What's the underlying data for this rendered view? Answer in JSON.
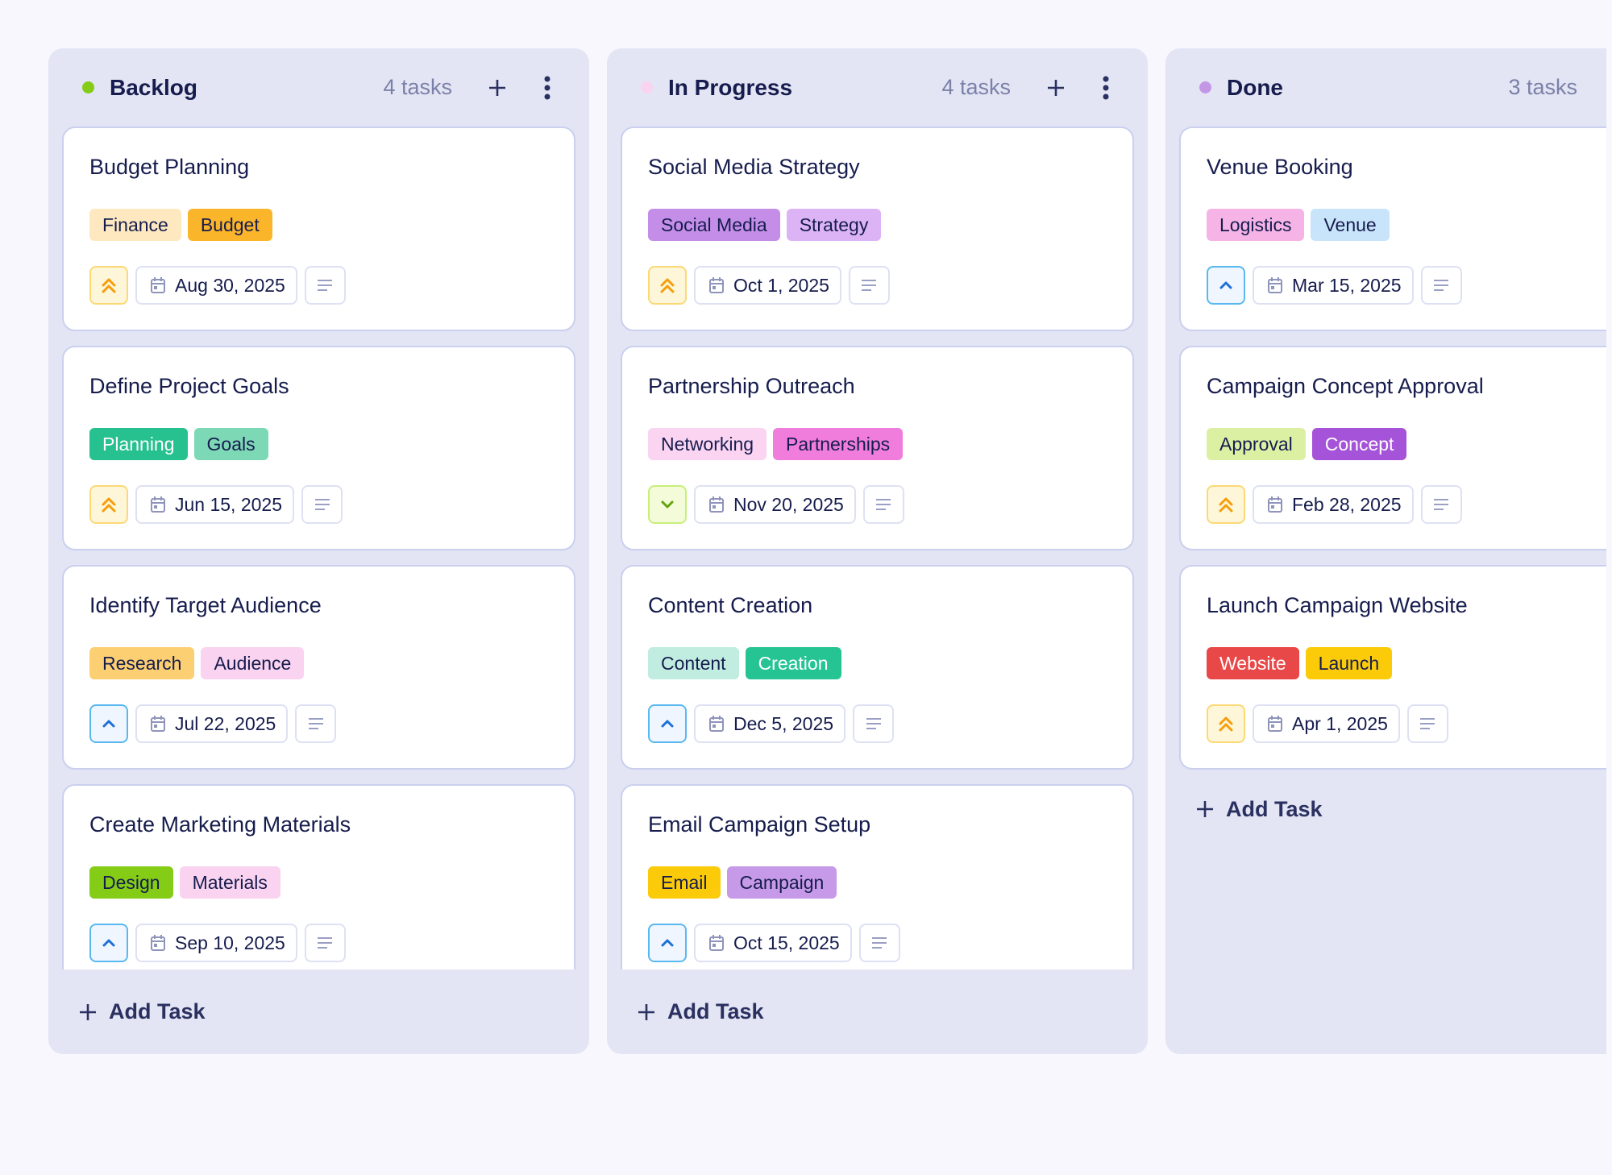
{
  "columns": [
    {
      "title": "Backlog",
      "count": "4 tasks",
      "dot_color": "#84cc16",
      "has_actions": true,
      "add_label": "Add Task",
      "cards": [
        {
          "title": "Budget Planning",
          "priority": "high",
          "date": "Aug 30, 2025",
          "tags": [
            {
              "label": "Finance",
              "bg": "#fde8c0",
              "fg": "#161c4d"
            },
            {
              "label": "Budget",
              "bg": "#fbb52b",
              "fg": "#161c4d"
            }
          ]
        },
        {
          "title": "Define Project Goals",
          "priority": "high",
          "date": "Jun 15, 2025",
          "tags": [
            {
              "label": "Planning",
              "bg": "#27c08f",
              "fg": "#ffffff"
            },
            {
              "label": "Goals",
              "bg": "#7dd8b6",
              "fg": "#161c4d"
            }
          ]
        },
        {
          "title": "Identify Target Audience",
          "priority": "medium",
          "date": "Jul 22, 2025",
          "tags": [
            {
              "label": "Research",
              "bg": "#fccf72",
              "fg": "#161c4d"
            },
            {
              "label": "Audience",
              "bg": "#f9d3ef",
              "fg": "#161c4d"
            }
          ]
        },
        {
          "title": "Create Marketing Materials",
          "priority": "medium",
          "date": "Sep 10, 2025",
          "tags": [
            {
              "label": "Design",
              "bg": "#84cc16",
              "fg": "#161c4d"
            },
            {
              "label": "Materials",
              "bg": "#f9d3ef",
              "fg": "#161c4d"
            }
          ]
        }
      ]
    },
    {
      "title": "In Progress",
      "count": "4 tasks",
      "dot_color": "#fad4ee",
      "has_actions": true,
      "add_label": "Add Task",
      "cards": [
        {
          "title": "Social Media Strategy",
          "priority": "high",
          "date": "Oct 1, 2025",
          "tags": [
            {
              "label": "Social Media",
              "bg": "#c48ee8",
              "fg": "#161c4d"
            },
            {
              "label": "Strategy",
              "bg": "#dcb4f6",
              "fg": "#161c4d"
            }
          ]
        },
        {
          "title": "Partnership Outreach",
          "priority": "low",
          "date": "Nov 20, 2025",
          "tags": [
            {
              "label": "Networking",
              "bg": "#fbd4f2",
              "fg": "#161c4d"
            },
            {
              "label": "Partnerships",
              "bg": "#f07ddc",
              "fg": "#161c4d"
            }
          ]
        },
        {
          "title": "Content Creation",
          "priority": "medium",
          "date": "Dec 5, 2025",
          "tags": [
            {
              "label": "Content",
              "bg": "#c0ede0",
              "fg": "#161c4d"
            },
            {
              "label": "Creation",
              "bg": "#27c493",
              "fg": "#ffffff"
            }
          ]
        },
        {
          "title": "Email Campaign Setup",
          "priority": "medium",
          "date": "Oct 15, 2025",
          "tags": [
            {
              "label": "Email",
              "bg": "#fbcb0a",
              "fg": "#161c4d"
            },
            {
              "label": "Campaign",
              "bg": "#c69ae8",
              "fg": "#161c4d"
            }
          ]
        }
      ]
    },
    {
      "title": "Done",
      "count": "3 tasks",
      "dot_color": "#c497e6",
      "has_actions": false,
      "add_label": "Add Task",
      "cards": [
        {
          "title": "Venue Booking",
          "priority": "medium",
          "date": "Mar 15, 2025",
          "tags": [
            {
              "label": "Logistics",
              "bg": "#f5b3e6",
              "fg": "#161c4d"
            },
            {
              "label": "Venue",
              "bg": "#c8e4fa",
              "fg": "#161c4d"
            }
          ]
        },
        {
          "title": "Campaign Concept Approval",
          "priority": "high",
          "date": "Feb 28, 2025",
          "tags": [
            {
              "label": "Approval",
              "bg": "#dcf0a4",
              "fg": "#161c4d"
            },
            {
              "label": "Concept",
              "bg": "#a553d9",
              "fg": "#ffffff"
            }
          ]
        },
        {
          "title": "Launch Campaign Website",
          "priority": "high",
          "date": "Apr 1, 2025",
          "tags": [
            {
              "label": "Website",
              "bg": "#e84848",
              "fg": "#ffffff"
            },
            {
              "label": "Launch",
              "bg": "#fbcb0a",
              "fg": "#161c4d"
            }
          ]
        }
      ]
    }
  ],
  "priority_styles": {
    "high": {
      "icon": "chevrons-up-icon",
      "bg": "#fef6d8",
      "border": "#fcd977",
      "color": "#f59e0b"
    },
    "medium": {
      "icon": "chevron-up-icon",
      "bg": "#eff6ff",
      "border": "#5ab8f0",
      "color": "#1d70d6"
    },
    "low": {
      "icon": "chevron-down-icon",
      "bg": "#f4fbd8",
      "border": "#c7ef7a",
      "color": "#65a30d"
    }
  }
}
